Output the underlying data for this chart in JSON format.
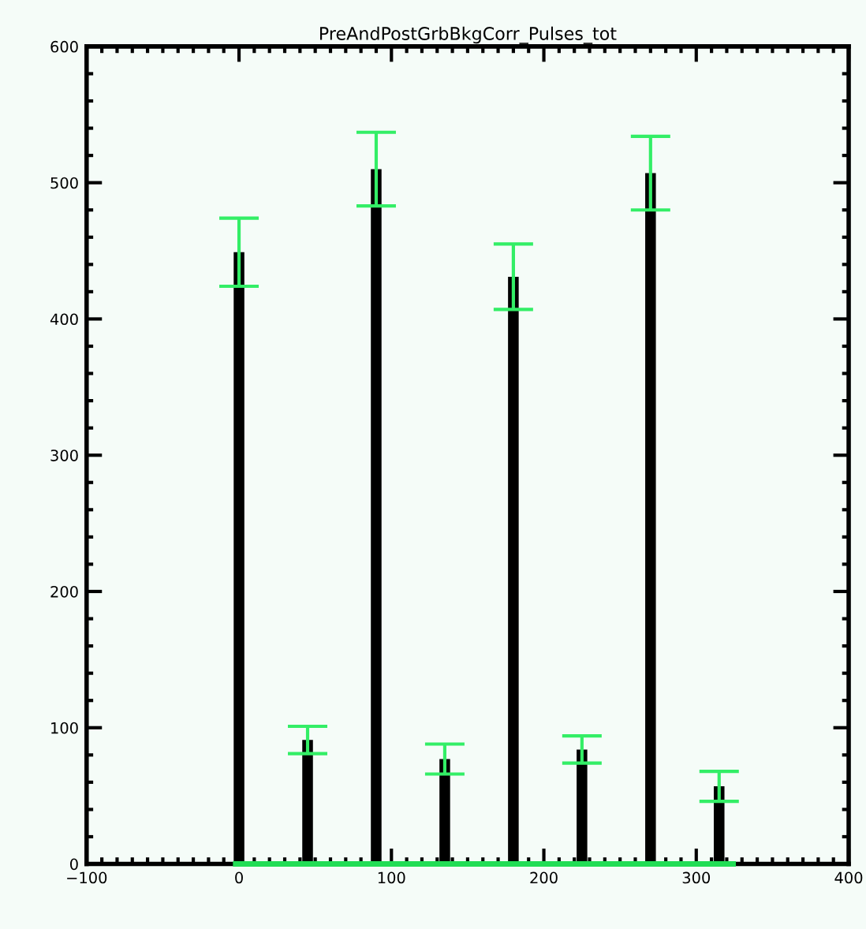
{
  "chart_data": {
    "type": "bar",
    "title": "PreAndPostGrbBkgCorr_Pulses_tot",
    "x": [
      0,
      45,
      90,
      135,
      180,
      225,
      270,
      315
    ],
    "series": [
      {
        "color": "#000000",
        "values": [
          449,
          91,
          510,
          77,
          431,
          84,
          507,
          57
        ],
        "errors": [
          25,
          10,
          27,
          11,
          24,
          10,
          27,
          11
        ]
      },
      {
        "type": "line",
        "color": "#22dd55",
        "x": [
          -4,
          326
        ],
        "values": [
          0,
          0
        ]
      }
    ],
    "xlim": [
      -100,
      400
    ],
    "xticks": [
      {
        "value": -100,
        "label": "−100"
      },
      0,
      100,
      200,
      300,
      400
    ],
    "ylim": [
      0,
      600
    ],
    "yticks": [
      0,
      100,
      200,
      300,
      400,
      500,
      600
    ],
    "grid": false,
    "legend": false
  }
}
